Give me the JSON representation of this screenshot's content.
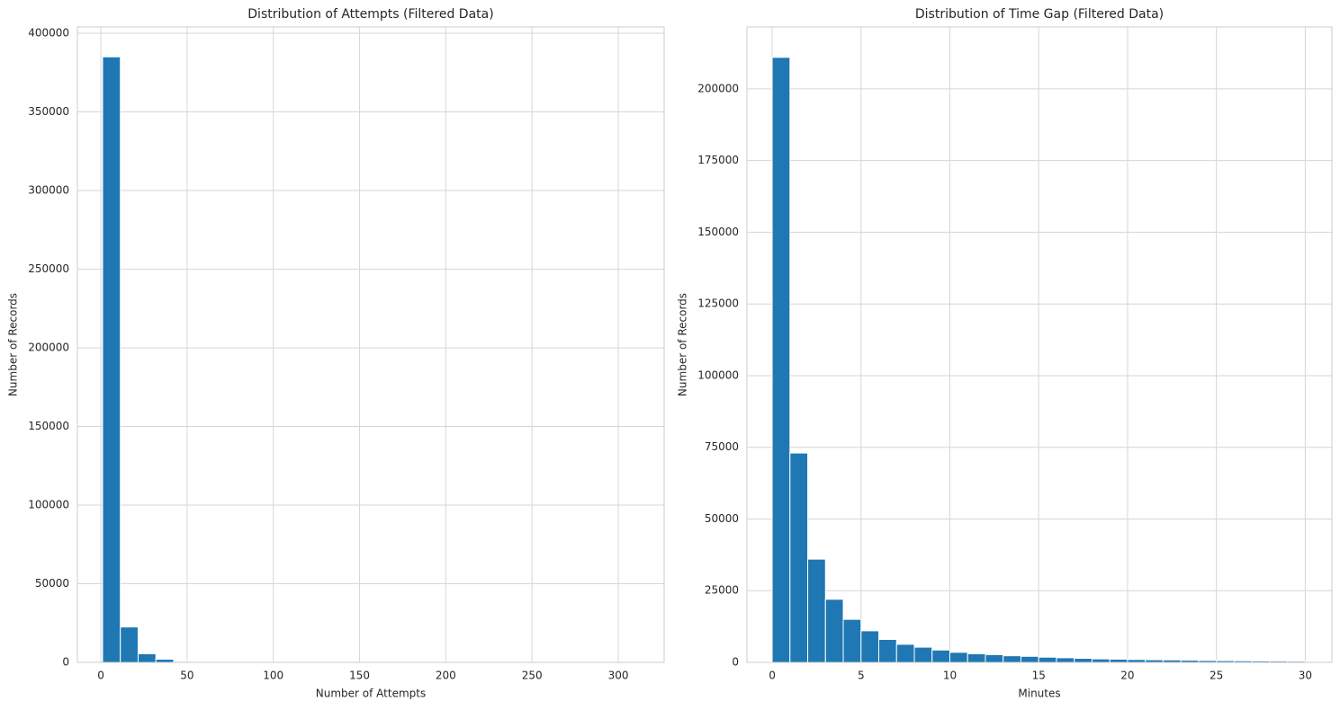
{
  "chart_data": [
    {
      "type": "histogram",
      "title": "Distribution of Attempts (Filtered Data)",
      "xlabel": "Number of Attempts",
      "ylabel": "Number of Records",
      "color": "#1f77b4",
      "grid": true,
      "bins": [
        1,
        11.3,
        21.6,
        31.9,
        42.2,
        52.5,
        62.8,
        73.1,
        83.4,
        93.7,
        104,
        114.3,
        124.6,
        134.9,
        145.2,
        155.5,
        165.8,
        176.1,
        186.4,
        196.7,
        207,
        217.3,
        227.6,
        237.9,
        248.2,
        258.5,
        268.8,
        279.1,
        289.4,
        299.7,
        310
      ],
      "values": [
        385000,
        22500,
        5500,
        2000,
        600,
        300,
        200,
        100,
        60,
        40,
        30,
        20,
        15,
        10,
        10,
        8,
        6,
        5,
        4,
        3,
        3,
        2,
        2,
        2,
        1,
        1,
        1,
        1,
        1,
        1
      ],
      "xlim": [
        -13.6,
        326.6
      ],
      "ylim": [
        0,
        404000
      ],
      "xticks": [
        0,
        50,
        100,
        150,
        200,
        250,
        300
      ],
      "yticks": [
        0,
        50000,
        100000,
        150000,
        200000,
        250000,
        300000,
        350000,
        400000
      ]
    },
    {
      "type": "histogram",
      "title": "Distribution of Time Gap (Filtered Data)",
      "xlabel": "Minutes",
      "ylabel": "Number of Records",
      "color": "#1f77b4",
      "grid": true,
      "bins": [
        0,
        1,
        2,
        3,
        4,
        5,
        6,
        7,
        8,
        9,
        10,
        11,
        12,
        13,
        14,
        15,
        16,
        17,
        18,
        19,
        20,
        21,
        22,
        23,
        24,
        25,
        26,
        27,
        28,
        29,
        30
      ],
      "values": [
        211000,
        73000,
        36000,
        22000,
        15000,
        11000,
        8000,
        6300,
        5300,
        4300,
        3500,
        3000,
        2700,
        2300,
        2100,
        1800,
        1600,
        1400,
        1200,
        1100,
        1000,
        900,
        850,
        750,
        650,
        600,
        550,
        500,
        450,
        400
      ],
      "xlim": [
        -1.42,
        31.5
      ],
      "ylim": [
        0,
        221600
      ],
      "xticks": [
        0,
        5,
        10,
        15,
        20,
        25,
        30
      ],
      "yticks": [
        0,
        25000,
        50000,
        75000,
        100000,
        125000,
        150000,
        175000,
        200000
      ]
    }
  ]
}
